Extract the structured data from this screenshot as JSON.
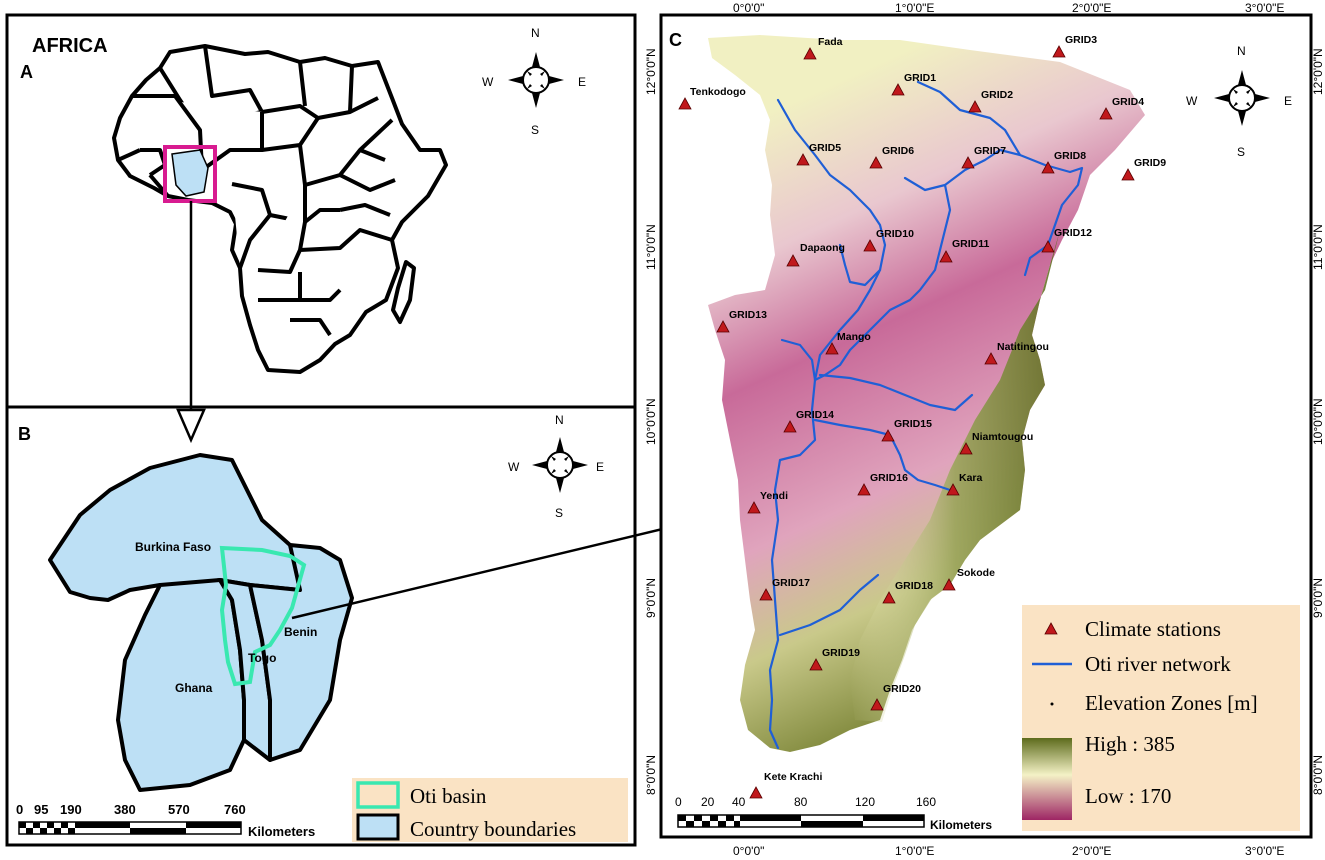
{
  "panelA": {
    "letter": "A",
    "title": "AFRICA",
    "compass": {
      "n": "N",
      "s": "S",
      "e": "E",
      "w": "W"
    }
  },
  "panelB": {
    "letter": "B",
    "compass": {
      "n": "N",
      "s": "S",
      "e": "E",
      "w": "W"
    },
    "countries": [
      "Burkina Faso",
      "Benin",
      "Togo",
      "Ghana"
    ],
    "legend": [
      {
        "label": "Oti basin",
        "swatch": "oti-basin"
      },
      {
        "label": "Country boundaries",
        "swatch": "country-boundaries"
      }
    ],
    "scale": {
      "ticks": [
        "0",
        "95",
        "190",
        "380",
        "570",
        "760"
      ],
      "unit": "Kilometers"
    }
  },
  "panelC": {
    "letter": "C",
    "compass": {
      "n": "N",
      "s": "S",
      "e": "E",
      "w": "W"
    },
    "lon_labels": [
      "0°0'0\"",
      "1°0'0\"E",
      "2°0'0\"E",
      "3°0'0\"E"
    ],
    "lat_labels": [
      "12°0'0\"N",
      "11°0'0\"N",
      "10°0'0\"N",
      "9°0'0\"N",
      "8°0'0\"N"
    ],
    "stations": [
      {
        "name": "Fada"
      },
      {
        "name": "GRID3"
      },
      {
        "name": "Tenkodogo"
      },
      {
        "name": "GRID1"
      },
      {
        "name": "GRID2"
      },
      {
        "name": "GRID4"
      },
      {
        "name": "GRID5"
      },
      {
        "name": "GRID6"
      },
      {
        "name": "GRID7"
      },
      {
        "name": "GRID8"
      },
      {
        "name": "GRID9"
      },
      {
        "name": "GRID10"
      },
      {
        "name": "GRID11"
      },
      {
        "name": "GRID12"
      },
      {
        "name": "Dapaong"
      },
      {
        "name": "GRID13"
      },
      {
        "name": "Mango"
      },
      {
        "name": "Natitingou"
      },
      {
        "name": "GRID14"
      },
      {
        "name": "GRID15"
      },
      {
        "name": "Niamtougou"
      },
      {
        "name": "GRID16"
      },
      {
        "name": "Kara"
      },
      {
        "name": "Yendi"
      },
      {
        "name": "GRID17"
      },
      {
        "name": "GRID18"
      },
      {
        "name": "Sokode"
      },
      {
        "name": "GRID19"
      },
      {
        "name": "GRID20"
      },
      {
        "name": "Kete Krachi"
      }
    ],
    "legend": {
      "stations": "Climate stations",
      "river": "Oti river network",
      "elevation": "Elevation Zones [m]",
      "high": "High : 385",
      "low": "Low : 170"
    },
    "scale": {
      "ticks": [
        "0",
        "20",
        "40",
        "80",
        "120",
        "160"
      ],
      "unit": "Kilometers"
    },
    "colors": {
      "station": "#c0181c",
      "river": "#1f5fd6",
      "elev_high": "#5d6b1c",
      "elev_mid": "#f4f2c6",
      "elev_low": "#9e2664"
    }
  },
  "colors": {
    "land": "#bde0f5",
    "oti": "#39e8b0",
    "highlight": "#d81b90",
    "legend_bg": "#fae3c4"
  }
}
